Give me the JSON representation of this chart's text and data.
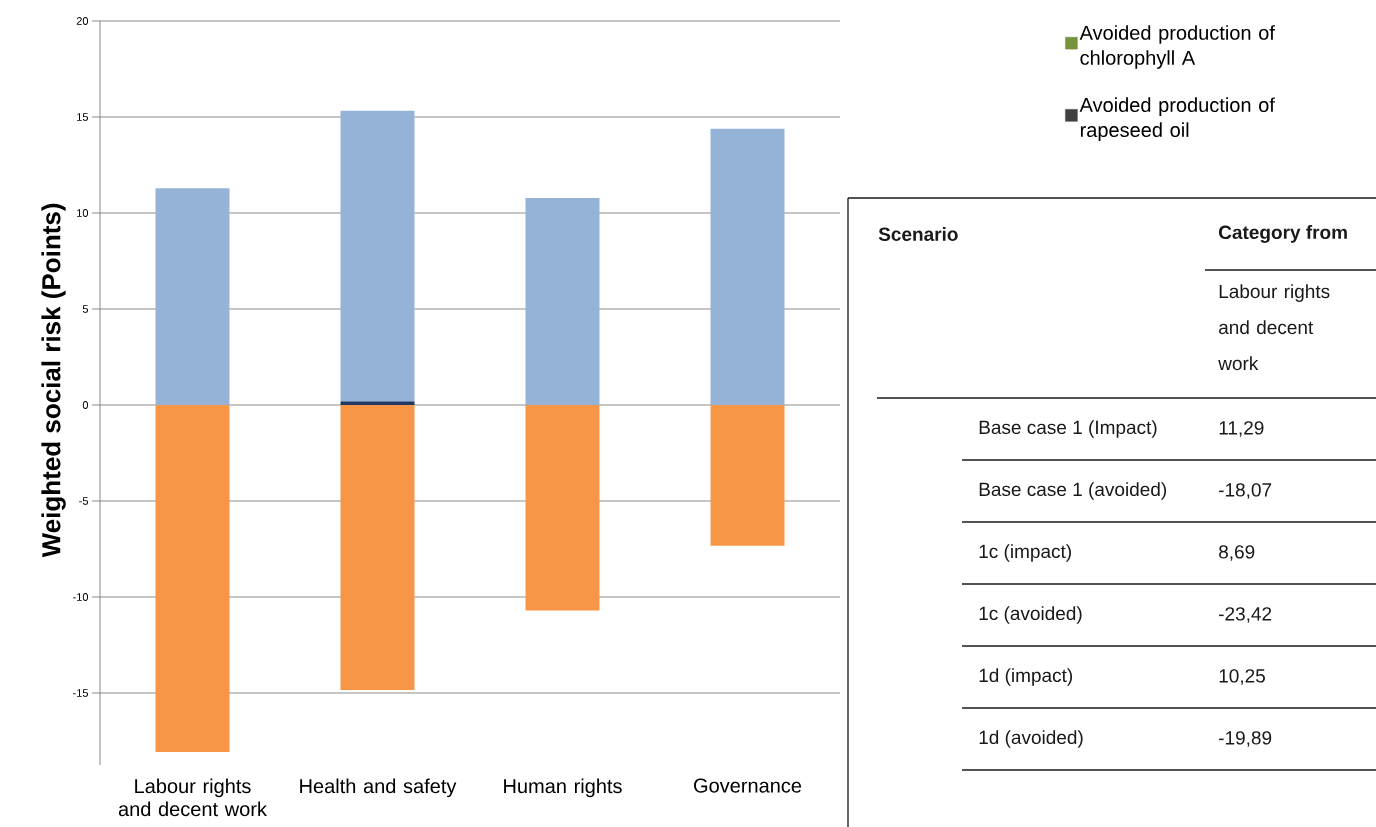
{
  "chart_data": [
    {
      "type": "bar",
      "stacked": true,
      "ylabel": "Weighted social risk (Points)",
      "categories": [
        "Labour rights and decent work",
        "Health and safety",
        "Human rights",
        "Governance"
      ],
      "series": [
        {
          "color": "#1f3864",
          "values": [
            null,
            0.2,
            null,
            null
          ]
        },
        {
          "color": "#95b3d7",
          "values": [
            11.29,
            15.13,
            10.78,
            14.39
          ]
        },
        {
          "color": "#f79646",
          "values": [
            -18.07,
            -14.85,
            -10.7,
            -7.33
          ]
        },
        {
          "name": "Avoided production of chlorophyll A",
          "color": "#77933c",
          "values": [
            null,
            null,
            null,
            null
          ]
        },
        {
          "name": "Avoided production of rapeseed oil",
          "color": "#404040",
          "values": [
            null,
            null,
            null,
            null
          ]
        }
      ],
      "ylim": [
        -18.75,
        20
      ],
      "yticks": [
        20,
        15,
        10,
        5,
        0,
        -5,
        -10,
        -15
      ],
      "grid": "y",
      "legend": "top right"
    },
    {
      "type": "other",
      "annotations": [
        "Scenario",
        "Category from",
        "Labour rights and decent work",
        "Base case 1 (Impact)",
        "11,29",
        "Base case 1 (avoided)",
        "-18,07",
        "1c (impact)",
        "8,69",
        "1c (avoided)",
        "-23,42",
        "1d (impact)",
        "10,25",
        "1d (avoided)",
        "-19,89"
      ]
    }
  ]
}
